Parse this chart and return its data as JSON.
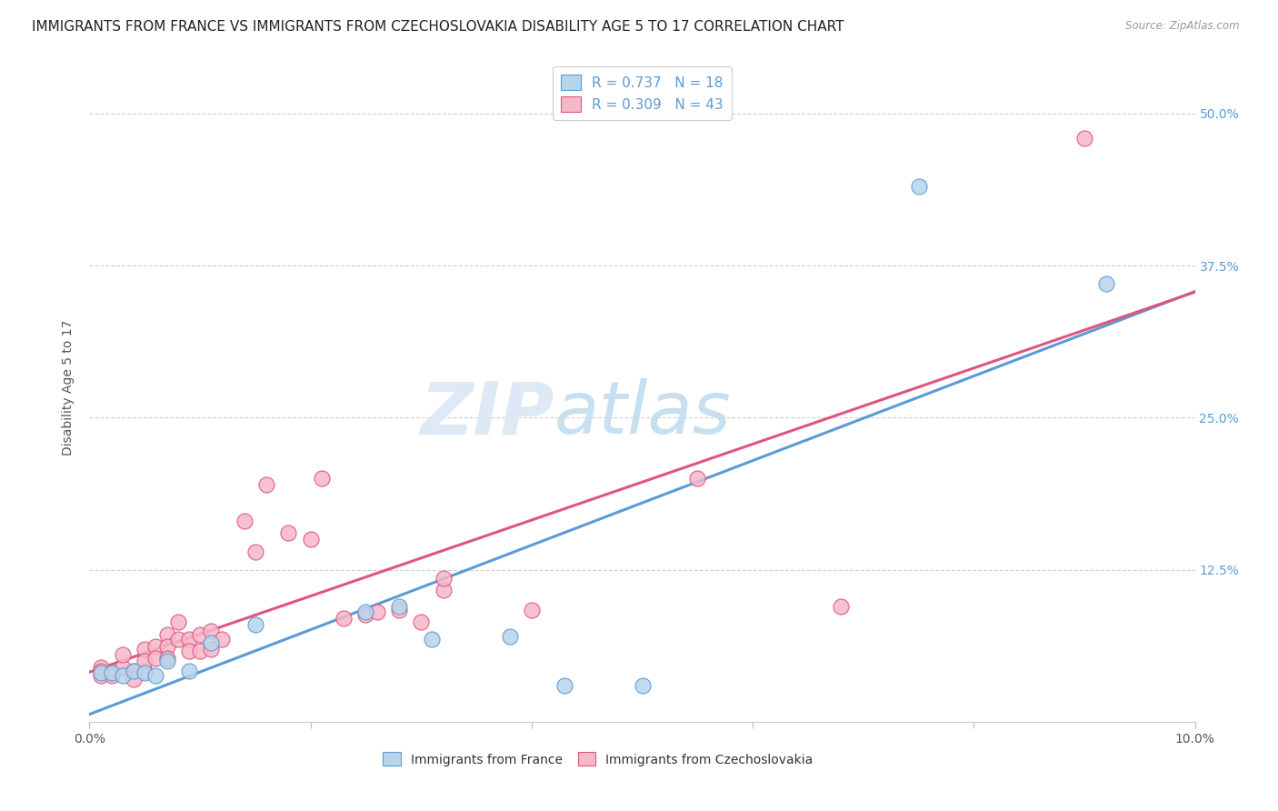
{
  "title": "IMMIGRANTS FROM FRANCE VS IMMIGRANTS FROM CZECHOSLOVAKIA DISABILITY AGE 5 TO 17 CORRELATION CHART",
  "source": "Source: ZipAtlas.com",
  "ylabel": "Disability Age 5 to 17",
  "xlim": [
    0.0,
    0.1
  ],
  "ylim": [
    0.0,
    0.55
  ],
  "xticks": [
    0.0,
    0.02,
    0.04,
    0.06,
    0.08,
    0.1
  ],
  "ytick_positions": [
    0.0,
    0.125,
    0.25,
    0.375,
    0.5
  ],
  "yticklabels_right": [
    "",
    "12.5%",
    "25.0%",
    "37.5%",
    "50.0%"
  ],
  "xtick_labels": [
    "0.0%",
    "",
    "",
    "",
    "",
    "10.0%"
  ],
  "france_R": 0.737,
  "france_N": 18,
  "czech_R": 0.309,
  "czech_N": 43,
  "france_color": "#b8d4ea",
  "czech_color": "#f5b8c8",
  "france_edge": "#5b9bd5",
  "czech_edge": "#e05580",
  "france_line": "#5b9bd5",
  "czech_line": "#e05580",
  "background": "#ffffff",
  "grid_color": "#d0d0d0",
  "france_x": [
    0.001,
    0.002,
    0.003,
    0.004,
    0.005,
    0.006,
    0.007,
    0.009,
    0.011,
    0.015,
    0.025,
    0.028,
    0.031,
    0.038,
    0.043,
    0.05,
    0.075,
    0.092
  ],
  "france_y": [
    0.04,
    0.04,
    0.038,
    0.042,
    0.04,
    0.038,
    0.05,
    0.042,
    0.065,
    0.08,
    0.09,
    0.095,
    0.068,
    0.07,
    0.03,
    0.03,
    0.44,
    0.36
  ],
  "czech_x": [
    0.001,
    0.001,
    0.001,
    0.002,
    0.002,
    0.003,
    0.003,
    0.004,
    0.004,
    0.005,
    0.005,
    0.005,
    0.006,
    0.006,
    0.007,
    0.007,
    0.007,
    0.008,
    0.008,
    0.009,
    0.009,
    0.01,
    0.01,
    0.011,
    0.011,
    0.012,
    0.014,
    0.015,
    0.016,
    0.018,
    0.02,
    0.021,
    0.023,
    0.025,
    0.026,
    0.028,
    0.03,
    0.032,
    0.032,
    0.04,
    0.055,
    0.068,
    0.09
  ],
  "czech_y": [
    0.045,
    0.042,
    0.038,
    0.04,
    0.038,
    0.045,
    0.055,
    0.042,
    0.035,
    0.042,
    0.06,
    0.05,
    0.062,
    0.052,
    0.072,
    0.062,
    0.052,
    0.068,
    0.082,
    0.068,
    0.058,
    0.072,
    0.058,
    0.075,
    0.06,
    0.068,
    0.165,
    0.14,
    0.195,
    0.155,
    0.15,
    0.2,
    0.085,
    0.088,
    0.09,
    0.092,
    0.082,
    0.108,
    0.118,
    0.092,
    0.2,
    0.095,
    0.48
  ],
  "title_fontsize": 11,
  "tick_fontsize": 10,
  "legend_fontsize": 11,
  "ylabel_fontsize": 10,
  "watermark_line1": "ZIP",
  "watermark_line2": "atlas"
}
